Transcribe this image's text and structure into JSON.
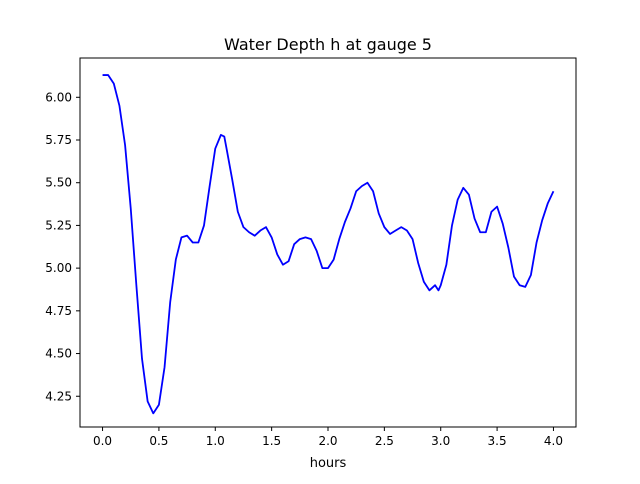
{
  "chart_data": {
    "type": "line",
    "title": "Water Depth h at gauge 5",
    "xlabel": "hours",
    "ylabel": "",
    "xlim": [
      -0.2,
      4.2
    ],
    "ylim": [
      4.07,
      6.23
    ],
    "xticks": [
      0.0,
      0.5,
      1.0,
      1.5,
      2.0,
      2.5,
      3.0,
      3.5,
      4.0
    ],
    "xtick_labels": [
      "0.0",
      "0.5",
      "1.0",
      "1.5",
      "2.0",
      "2.5",
      "3.0",
      "3.5",
      "4.0"
    ],
    "yticks": [
      4.25,
      4.5,
      4.75,
      5.0,
      5.25,
      5.5,
      5.75,
      6.0
    ],
    "ytick_labels": [
      "4.25",
      "4.50",
      "4.75",
      "5.00",
      "5.25",
      "5.50",
      "5.75",
      "6.00"
    ],
    "grid": false,
    "series": [
      {
        "color": "#0000ff",
        "x": [
          0.0,
          0.05,
          0.1,
          0.15,
          0.2,
          0.25,
          0.3,
          0.35,
          0.4,
          0.45,
          0.5,
          0.55,
          0.6,
          0.65,
          0.7,
          0.75,
          0.8,
          0.85,
          0.9,
          0.95,
          1.0,
          1.05,
          1.08,
          1.1,
          1.15,
          1.2,
          1.25,
          1.3,
          1.35,
          1.4,
          1.45,
          1.5,
          1.55,
          1.6,
          1.65,
          1.7,
          1.75,
          1.8,
          1.85,
          1.9,
          1.95,
          2.0,
          2.05,
          2.1,
          2.15,
          2.2,
          2.25,
          2.3,
          2.35,
          2.4,
          2.45,
          2.5,
          2.55,
          2.6,
          2.65,
          2.7,
          2.75,
          2.8,
          2.85,
          2.9,
          2.95,
          2.98,
          3.0,
          3.05,
          3.1,
          3.15,
          3.2,
          3.25,
          3.3,
          3.35,
          3.4,
          3.45,
          3.5,
          3.55,
          3.6,
          3.65,
          3.7,
          3.75,
          3.8,
          3.85,
          3.9,
          3.95,
          4.0
        ],
        "y": [
          6.13,
          6.13,
          6.08,
          5.95,
          5.72,
          5.35,
          4.9,
          4.47,
          4.22,
          4.15,
          4.2,
          4.42,
          4.8,
          5.05,
          5.18,
          5.19,
          5.15,
          5.15,
          5.25,
          5.48,
          5.7,
          5.78,
          5.77,
          5.7,
          5.52,
          5.33,
          5.24,
          5.21,
          5.19,
          5.22,
          5.24,
          5.18,
          5.08,
          5.02,
          5.04,
          5.14,
          5.17,
          5.18,
          5.17,
          5.1,
          5.0,
          5.0,
          5.05,
          5.17,
          5.27,
          5.35,
          5.45,
          5.48,
          5.5,
          5.45,
          5.32,
          5.24,
          5.2,
          5.22,
          5.24,
          5.22,
          5.17,
          5.03,
          4.92,
          4.87,
          4.9,
          4.87,
          4.9,
          5.02,
          5.25,
          5.4,
          5.47,
          5.43,
          5.29,
          5.21,
          5.21,
          5.33,
          5.36,
          5.26,
          5.12,
          4.95,
          4.9,
          4.89,
          4.96,
          5.15,
          5.28,
          5.38,
          5.45
        ]
      }
    ]
  }
}
